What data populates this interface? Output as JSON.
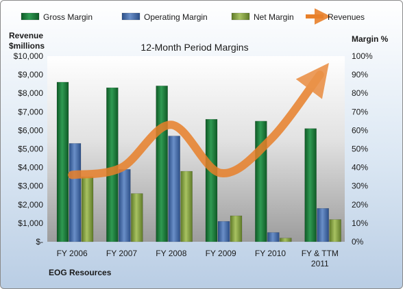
{
  "chart_data": {
    "type": "bar",
    "title": "12-Month Period Margins",
    "company": "EOG Resources",
    "y_left_label_line1": "Revenue",
    "y_left_label_line2": "$millions",
    "y_right_label": "Margin %",
    "categories": [
      [
        "FY 2006"
      ],
      [
        "FY 2007"
      ],
      [
        "FY 2008"
      ],
      [
        "FY 2009"
      ],
      [
        "FY 2010"
      ],
      [
        "FY & TTM",
        "2011"
      ]
    ],
    "y_left_ticks": [
      "$-",
      "$1,000",
      "$2,000",
      "$3,000",
      "$4,000",
      "$5,000",
      "$6,000",
      "$7,000",
      "$8,000",
      "$9,000",
      "$10,000"
    ],
    "y_right_ticks": [
      "0%",
      "10%",
      "20%",
      "30%",
      "40%",
      "50%",
      "60%",
      "70%",
      "80%",
      "90%",
      "100%"
    ],
    "y_left_range": [
      0,
      10000
    ],
    "y_right_range": [
      0,
      100
    ],
    "legend_position": "top",
    "series": [
      {
        "name": "Gross Margin",
        "axis": "right",
        "kind": "bar",
        "color": "#1f7a3a",
        "values": [
          86,
          83,
          84,
          66,
          65,
          61
        ]
      },
      {
        "name": "Operating Margin",
        "axis": "right",
        "kind": "bar",
        "color": "#4a6faa",
        "values": [
          53,
          39,
          57,
          11,
          5,
          18
        ]
      },
      {
        "name": "Net Margin",
        "axis": "right",
        "kind": "bar",
        "color": "#8aa648",
        "values": [
          35,
          26,
          38,
          14,
          2,
          12
        ]
      },
      {
        "name": "Revenues",
        "axis": "left",
        "kind": "line",
        "color": "#e8802a",
        "values": [
          3600,
          4000,
          6300,
          3700,
          5500,
          9000
        ]
      }
    ]
  }
}
